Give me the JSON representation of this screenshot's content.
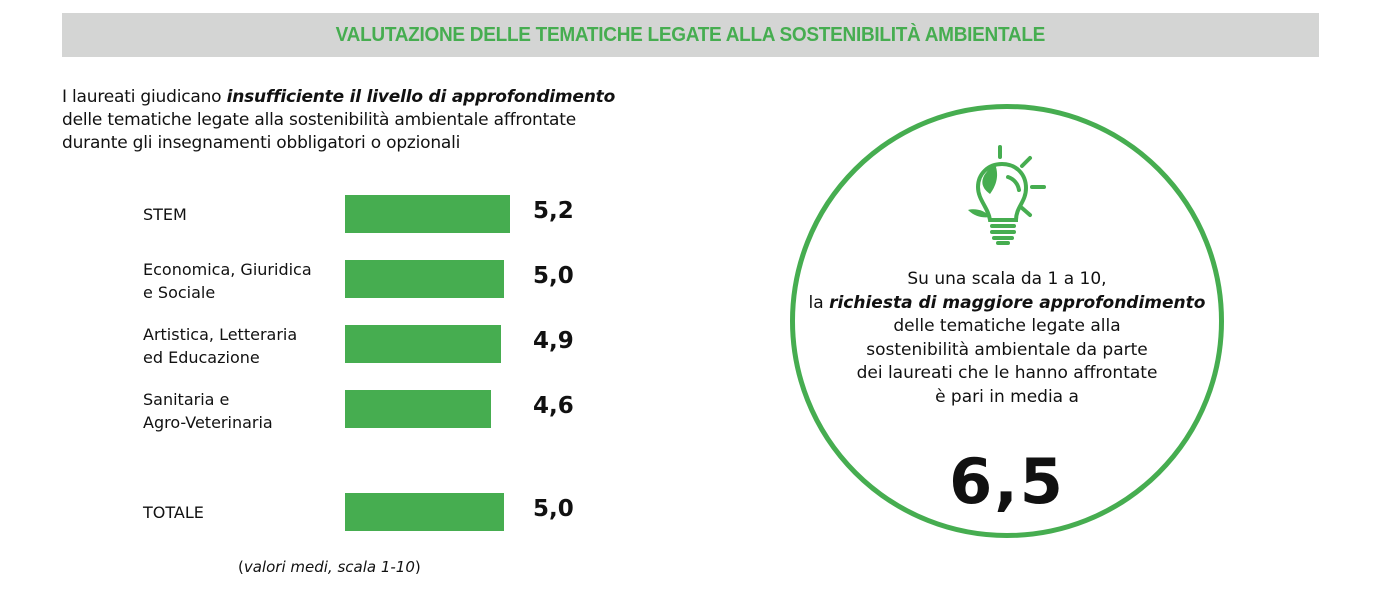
{
  "header": {
    "title": "VALUTAZIONE DELLE TEMATICHE LEGATE ALLA SOSTENIBILITÀ AMBIENTALE"
  },
  "intro": {
    "pre": "I laureati giudicano ",
    "emph": "insufficiente il livello di approfondimento",
    "line2": "delle tematiche legate alla sostenibilità ambientale affrontate",
    "line3": "durante gli insegnamenti obbligatori o opzionali"
  },
  "chart_data": {
    "type": "bar",
    "orientation": "horizontal",
    "categories": [
      [
        "STEM"
      ],
      [
        "Economica, Giuridica",
        "e Sociale"
      ],
      [
        "Artistica, Letteraria",
        "ed Educazione"
      ],
      [
        "Sanitaria e",
        "Agro-Veterinaria"
      ],
      [
        "TOTALE"
      ]
    ],
    "values": [
      5.2,
      5.0,
      4.9,
      4.6,
      5.0
    ],
    "value_labels": [
      "5,2",
      "5,0",
      "4,9",
      "4,6",
      "5,0"
    ],
    "note_open": "(",
    "note": "valori medi, scala 1-10",
    "note_close": ")",
    "xlim": [
      0,
      10
    ],
    "color": "#46ad50"
  },
  "circle": {
    "l1": "Su una scala da 1 a 10,",
    "l2pre": "la ",
    "l2emph": "richiesta di maggiore approfondimento",
    "l3": "delle tematiche legate alla",
    "l4": "sostenibilità ambientale da parte",
    "l5": "dei laureati che le hanno affrontate",
    "l6": "è pari in media a",
    "value": "6,5",
    "icon": "lightbulb-leaf-icon"
  }
}
